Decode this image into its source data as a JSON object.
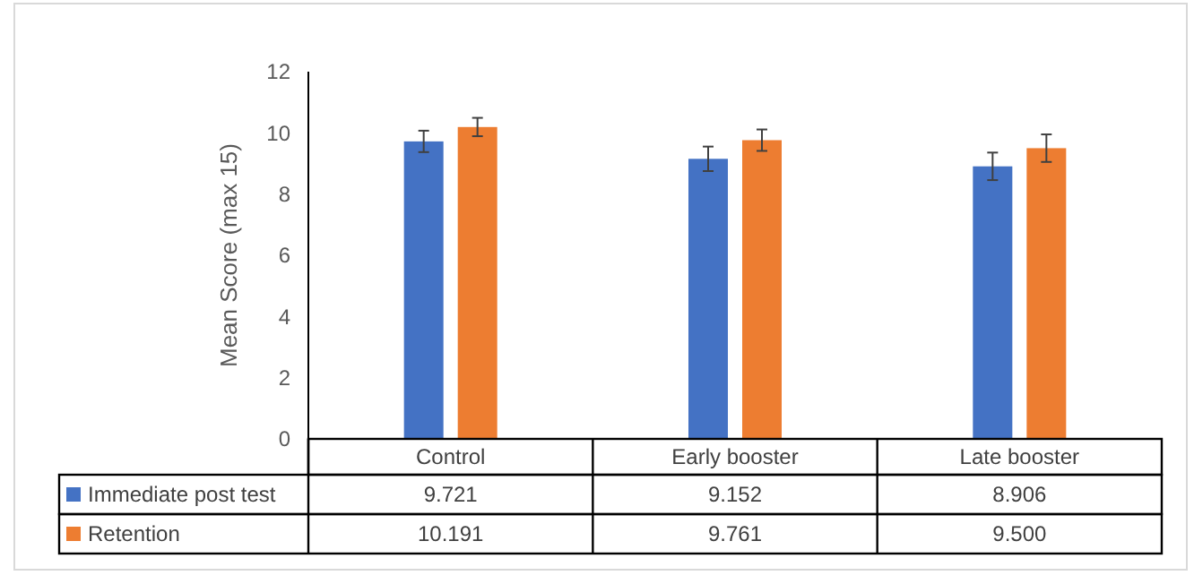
{
  "chart_data": {
    "type": "bar",
    "ylabel": "Mean Score (max 15)",
    "categories": [
      "Control",
      "Early booster",
      "Late booster"
    ],
    "series": [
      {
        "name": "Immediate post test",
        "color": "#4472c4",
        "values": [
          9.721,
          9.152,
          8.906
        ],
        "errors": [
          0.35,
          0.4,
          0.45
        ],
        "value_labels": [
          "9.721",
          "9.152",
          "8.906"
        ]
      },
      {
        "name": "Retention",
        "color": "#ed7d31",
        "values": [
          10.191,
          9.761,
          9.5
        ],
        "errors": [
          0.3,
          0.35,
          0.45
        ],
        "value_labels": [
          "10.191",
          "9.761",
          "9.500"
        ]
      }
    ],
    "ylim": [
      0,
      12
    ],
    "yticks": [
      0,
      2,
      4,
      6,
      8,
      10,
      12
    ],
    "grid": false,
    "legend": "bottom"
  }
}
